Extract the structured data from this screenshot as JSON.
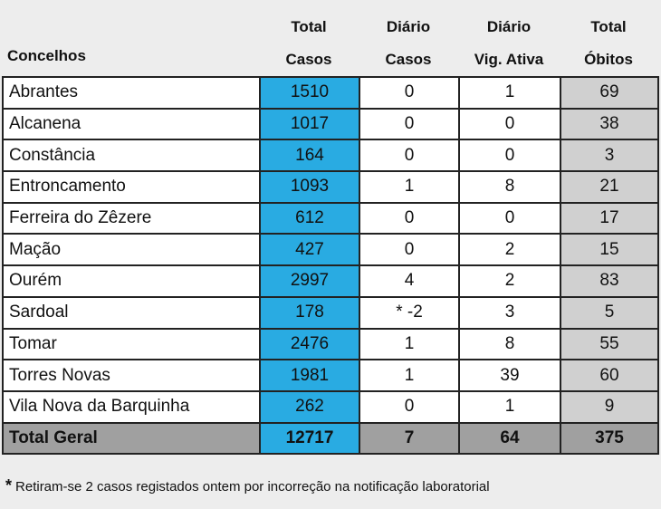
{
  "header": {
    "concelhos": "Concelhos",
    "total_casos": [
      "Total",
      "Casos"
    ],
    "diario_casos": [
      "Diário",
      "Casos"
    ],
    "diario_vig": [
      "Diário",
      "Vig. Ativa"
    ],
    "total_obitos": [
      "Total",
      "Óbitos"
    ]
  },
  "rows": [
    {
      "name": "Abrantes",
      "total_casos": "1510",
      "diario_casos": "0",
      "diario_vig": "1",
      "total_obitos": "69"
    },
    {
      "name": "Alcanena",
      "total_casos": "1017",
      "diario_casos": "0",
      "diario_vig": "0",
      "total_obitos": "38"
    },
    {
      "name": "Constância",
      "total_casos": "164",
      "diario_casos": "0",
      "diario_vig": "0",
      "total_obitos": "3"
    },
    {
      "name": "Entroncamento",
      "total_casos": "1093",
      "diario_casos": "1",
      "diario_vig": "8",
      "total_obitos": "21"
    },
    {
      "name": "Ferreira do Zêzere",
      "total_casos": "612",
      "diario_casos": "0",
      "diario_vig": "0",
      "total_obitos": "17"
    },
    {
      "name": "Mação",
      "total_casos": "427",
      "diario_casos": "0",
      "diario_vig": "2",
      "total_obitos": "15"
    },
    {
      "name": "Ourém",
      "total_casos": "2997",
      "diario_casos": "4",
      "diario_vig": "2",
      "total_obitos": "83"
    },
    {
      "name": "Sardoal",
      "total_casos": "178",
      "diario_casos": "* -2",
      "diario_vig": "3",
      "total_obitos": "5"
    },
    {
      "name": "Tomar",
      "total_casos": "2476",
      "diario_casos": "1",
      "diario_vig": "8",
      "total_obitos": "55"
    },
    {
      "name": "Torres Novas",
      "total_casos": "1981",
      "diario_casos": "1",
      "diario_vig": "39",
      "total_obitos": "60"
    },
    {
      "name": "Vila Nova da Barquinha",
      "total_casos": "262",
      "diario_casos": "0",
      "diario_vig": "1",
      "total_obitos": "9"
    }
  ],
  "total": {
    "name": "Total Geral",
    "total_casos": "12717",
    "diario_casos": "7",
    "diario_vig": "64",
    "total_obitos": "375"
  },
  "footnote": {
    "star": "*",
    "text": "Retiram-se 2 casos registados ontem por incorreção na notificação laboratorial"
  },
  "colors": {
    "blue": "#29abe2",
    "grey": "#d0d0d0",
    "total_grey": "#a0a0a0",
    "background": "#ededed"
  }
}
